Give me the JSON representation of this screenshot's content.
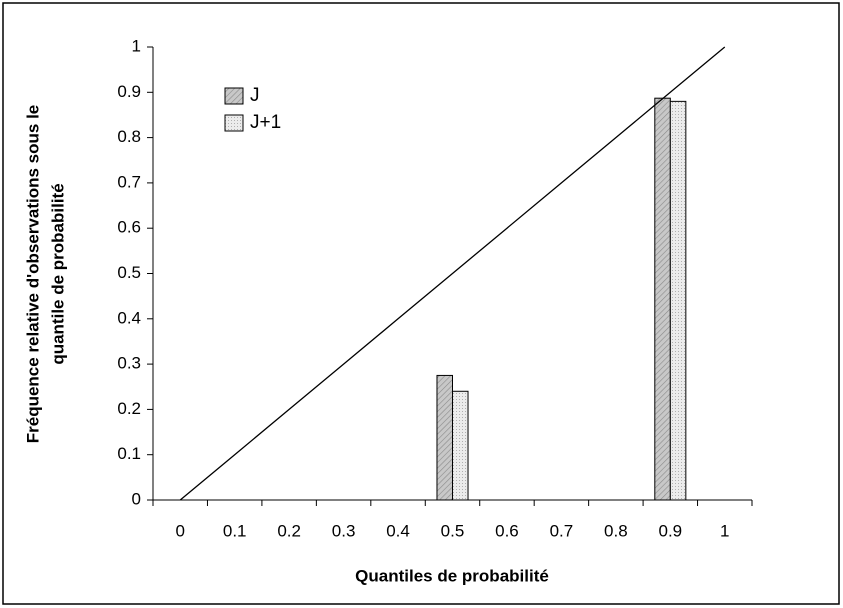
{
  "chart_data": {
    "type": "bar",
    "xlabel": "Quantiles de probabilité",
    "ylabel": [
      "Fréquence relative d'observations sous le",
      "quantile de probabilité"
    ],
    "categories": [
      "0",
      "0.1",
      "0.2",
      "0.3",
      "0.4",
      "0.5",
      "0.6",
      "0.7",
      "0.8",
      "0.9",
      "1"
    ],
    "series": [
      {
        "name": "J",
        "color": "#bdbdbd",
        "values": [
          0,
          0,
          0,
          0,
          0,
          0.275,
          0,
          0,
          0,
          0.887,
          0
        ]
      },
      {
        "name": "J+1",
        "color": "#e6e6e6",
        "values": [
          0,
          0,
          0,
          0,
          0,
          0.24,
          0,
          0,
          0,
          0.88,
          0
        ]
      }
    ],
    "line": {
      "color": "#000000",
      "values": [
        0,
        0.1,
        0.2,
        0.3,
        0.4,
        0.5,
        0.6,
        0.7,
        0.8,
        0.9,
        1
      ]
    },
    "ylim": [
      0,
      1
    ],
    "yticks": [
      0,
      0.1,
      0.2,
      0.3,
      0.4,
      0.5,
      0.6,
      0.7,
      0.8,
      0.9,
      1
    ],
    "grid": false,
    "legend": "top-left"
  }
}
